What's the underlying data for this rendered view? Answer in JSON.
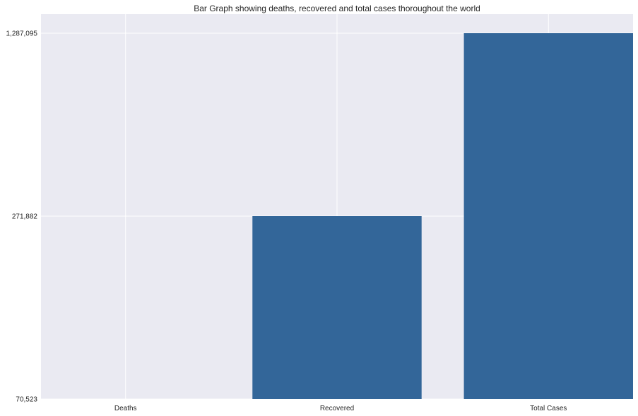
{
  "chart_data": {
    "type": "bar",
    "title": "Bar Graph showing deaths, recovered and total cases thoroughout the world",
    "xlabel": "",
    "ylabel": "",
    "categories": [
      "Deaths",
      "Recovered",
      "Total Cases"
    ],
    "values": [
      70523,
      271882,
      1287095
    ],
    "y_ticks": [
      {
        "value": 70523,
        "label": "70,523"
      },
      {
        "value": 271882,
        "label": "271,882"
      },
      {
        "value": 1287095,
        "label": "1,287,095"
      }
    ],
    "y_scale": "categorical-rank",
    "grid": true,
    "colors": {
      "bar": "#336699",
      "background": "#eaeaf2",
      "grid": "#ffffff"
    }
  }
}
